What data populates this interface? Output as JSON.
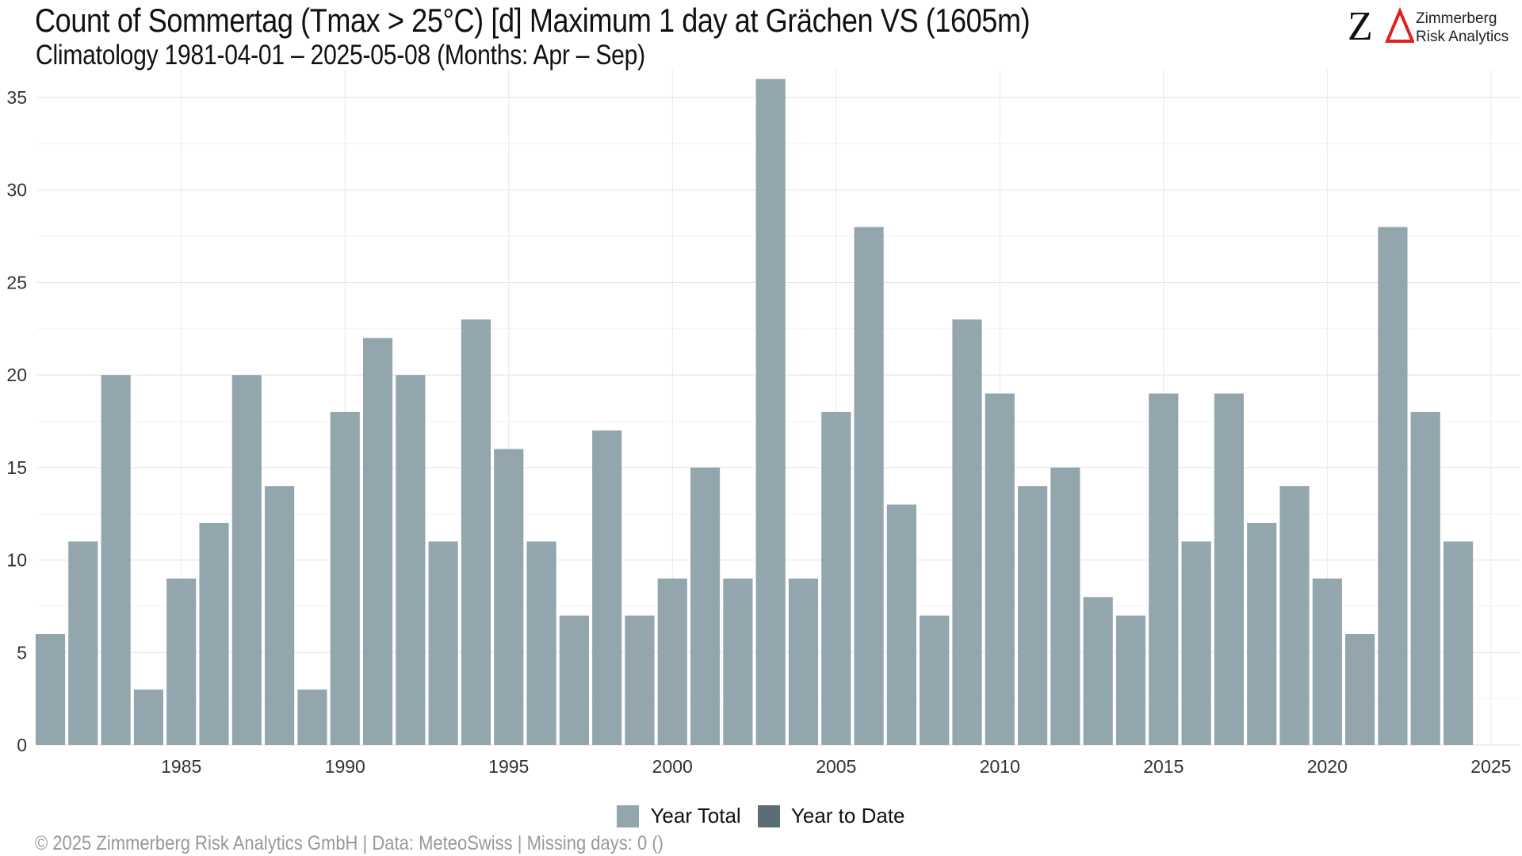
{
  "header": {
    "title": "Count of Sommertag (Tmax > 25°C) [d] Maximum 1 day at Grächen  VS (1605m)",
    "subtitle": "Climatology 1981-04-01 – 2025-05-08 (Months: Apr – Sep)"
  },
  "logo": {
    "mark": "ZΔ",
    "line1": "Zimmerberg",
    "line2": "Risk Analytics"
  },
  "legend": [
    {
      "label": "Year Total",
      "color": "#93a6ad"
    },
    {
      "label": "Year to Date",
      "color": "#5b6e75"
    }
  ],
  "footer": "©  2025 Zimmerberg Risk Analytics GmbH | Data: MeteoSwiss | Missing days: 0 ()",
  "chart_data": {
    "type": "bar",
    "title": "Count of Sommertag (Tmax > 25°C) [d] Maximum 1 day at Grächen  VS (1605m)",
    "subtitle": "Climatology 1981-04-01 – 2025-05-08 (Months: Apr – Sep)",
    "xlabel": "",
    "ylabel": "",
    "x_ticks": [
      1985,
      1990,
      1995,
      2000,
      2005,
      2010,
      2015,
      2020,
      2025
    ],
    "y_ticks": [
      0,
      5,
      10,
      15,
      20,
      25,
      30,
      35
    ],
    "xlim": [
      1980.6,
      2025.9
    ],
    "ylim": [
      0,
      36.5
    ],
    "grid": true,
    "legend_position": "bottom",
    "series": [
      {
        "name": "Year Total",
        "color": "#93a6ad",
        "x": [
          1981,
          1982,
          1983,
          1984,
          1985,
          1986,
          1987,
          1988,
          1989,
          1990,
          1991,
          1992,
          1993,
          1994,
          1995,
          1996,
          1997,
          1998,
          1999,
          2000,
          2001,
          2002,
          2003,
          2004,
          2005,
          2006,
          2007,
          2008,
          2009,
          2010,
          2011,
          2012,
          2013,
          2014,
          2015,
          2016,
          2017,
          2018,
          2019,
          2020,
          2021,
          2022,
          2023,
          2024
        ],
        "values": [
          6,
          11,
          20,
          3,
          9,
          12,
          20,
          14,
          3,
          18,
          22,
          20,
          11,
          23,
          16,
          11,
          7,
          17,
          7,
          9,
          15,
          9,
          36,
          9,
          18,
          28,
          13,
          7,
          23,
          19,
          14,
          15,
          8,
          7,
          19,
          11,
          19,
          12,
          14,
          9,
          6,
          28,
          18,
          11
        ]
      },
      {
        "name": "Year to Date",
        "color": "#5b6e75",
        "x": [],
        "values": []
      }
    ]
  }
}
